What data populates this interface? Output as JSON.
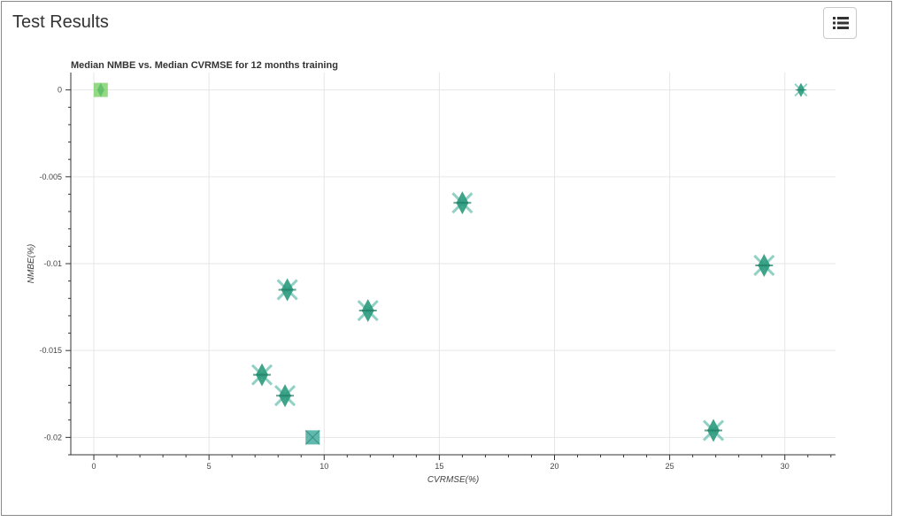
{
  "page": {
    "title": "Test Results",
    "menu_icon": "list-icon"
  },
  "chart_data": {
    "type": "scatter",
    "title": "Median NMBE vs. Median CVRMSE for 12 months training",
    "xlabel": "CVRMSE(%)",
    "ylabel": "NMBE(%)",
    "xlim": [
      -1,
      32.2
    ],
    "ylim": [
      -0.021,
      0.001
    ],
    "xticks": [
      0,
      5,
      10,
      15,
      20,
      25,
      30
    ],
    "yticks": [
      0,
      -0.005,
      -0.01,
      -0.015,
      -0.02
    ],
    "xtick_labels": [
      "0",
      "5",
      "10",
      "15",
      "20",
      "25",
      "30"
    ],
    "ytick_labels": [
      "0",
      "-0.005",
      "-0.01",
      "-0.015",
      "-0.02"
    ],
    "grid": true,
    "colors": {
      "teal": "#2a9a7c",
      "light_green": "#72cc5c",
      "square_teal": "#3aa89a"
    },
    "points": [
      {
        "x": 0.3,
        "y": 0.0,
        "marker": "square",
        "color": "light_green"
      },
      {
        "x": 30.7,
        "y": 0.0,
        "marker": "diamond-x-small",
        "color": "teal"
      },
      {
        "x": 16.0,
        "y": -0.0065,
        "marker": "diamond-x",
        "color": "teal"
      },
      {
        "x": 29.1,
        "y": -0.0101,
        "marker": "diamond-x",
        "color": "teal"
      },
      {
        "x": 8.4,
        "y": -0.0115,
        "marker": "diamond-x",
        "color": "teal"
      },
      {
        "x": 11.9,
        "y": -0.0127,
        "marker": "diamond-x",
        "color": "teal"
      },
      {
        "x": 7.3,
        "y": -0.0164,
        "marker": "diamond-x",
        "color": "teal"
      },
      {
        "x": 8.3,
        "y": -0.0176,
        "marker": "diamond-x",
        "color": "teal"
      },
      {
        "x": 9.5,
        "y": -0.02,
        "marker": "square-x",
        "color": "square_teal"
      },
      {
        "x": 26.9,
        "y": -0.0196,
        "marker": "diamond-x",
        "color": "teal"
      }
    ]
  }
}
